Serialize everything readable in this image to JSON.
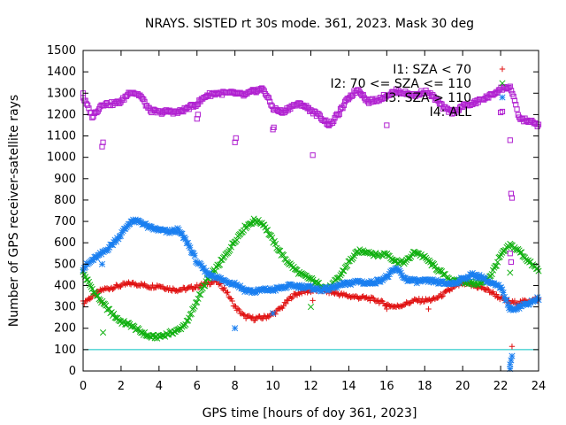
{
  "chart_data": {
    "type": "scatter",
    "title": "NRAYS. SISTED rt 30s mode. 361, 2023. Mask 30 deg",
    "xlabel": "GPS time [hours of doy 361, 2023]",
    "ylabel": "Number of GPS receiver-satellite rays",
    "xlim": [
      0,
      24
    ],
    "ylim": [
      0,
      1500
    ],
    "xticks": [
      "0",
      "2",
      "4",
      "6",
      "8",
      "10",
      "12",
      "14",
      "16",
      "18",
      "20",
      "22",
      "24"
    ],
    "yticks": [
      "0",
      "100",
      "200",
      "300",
      "400",
      "500",
      "600",
      "700",
      "800",
      "900",
      "1000",
      "1100",
      "1200",
      "1300",
      "1400",
      "1500"
    ],
    "reference_line": {
      "y": 100,
      "color": "#00c0c0"
    },
    "series": [
      {
        "name": "I1: SZA < 70",
        "marker": "plus",
        "color": "#e01010",
        "x": [
          0,
          0.5,
          1,
          1.5,
          2,
          2.5,
          3,
          3.5,
          4,
          4.5,
          5,
          5.5,
          6,
          6.5,
          7,
          7.5,
          8,
          8.5,
          9,
          9.5,
          10,
          10.5,
          11,
          11.5,
          12,
          12.5,
          13,
          13.5,
          14,
          14.5,
          15,
          15.5,
          16,
          16.5,
          17,
          17.5,
          18,
          18.5,
          19,
          19.5,
          20,
          20.5,
          21,
          21.5,
          22,
          22.5,
          23,
          23.5,
          24
        ],
        "y": [
          320,
          350,
          380,
          390,
          400,
          410,
          405,
          395,
          400,
          385,
          380,
          385,
          395,
          410,
          420,
          380,
          300,
          255,
          245,
          250,
          265,
          300,
          350,
          370,
          375,
          380,
          370,
          360,
          350,
          345,
          340,
          330,
          310,
          300,
          315,
          330,
          330,
          335,
          360,
          390,
          410,
          400,
          390,
          370,
          340,
          320,
          320,
          330,
          335
        ],
        "outliers": [
          [
            1.0,
            320
          ],
          [
            12.1,
            330
          ],
          [
            16.0,
            290
          ],
          [
            18.2,
            290
          ],
          [
            22.6,
            115
          ]
        ]
      },
      {
        "name": "I2: 70 <= SZA <= 110",
        "marker": "x",
        "color": "#10b010",
        "x": [
          0,
          0.5,
          1,
          1.5,
          2,
          2.5,
          3,
          3.5,
          4,
          4.5,
          5,
          5.5,
          6,
          6.5,
          7,
          7.5,
          8,
          8.5,
          9,
          9.5,
          10,
          10.5,
          11,
          11.5,
          12,
          12.5,
          13,
          13.5,
          14,
          14.5,
          15,
          15.5,
          16,
          16.5,
          17,
          17.5,
          18,
          18.5,
          19,
          19.5,
          20,
          20.5,
          21,
          21.5,
          22,
          22.5,
          23,
          23.5,
          24
        ],
        "y": [
          460,
          380,
          320,
          270,
          230,
          215,
          185,
          160,
          160,
          175,
          190,
          230,
          330,
          420,
          480,
          540,
          610,
          670,
          705,
          690,
          610,
          540,
          490,
          450,
          430,
          400,
          390,
          440,
          510,
          560,
          560,
          540,
          550,
          510,
          510,
          560,
          530,
          490,
          450,
          420,
          420,
          410,
          410,
          450,
          540,
          590,
          560,
          510,
          470
        ],
        "outliers": [
          [
            1.05,
            180
          ],
          [
            12.0,
            300
          ],
          [
            22.5,
            460
          ]
        ]
      },
      {
        "name": "I3: SZA > 110",
        "marker": "star",
        "color": "#1a7ff0",
        "x": [
          0,
          0.5,
          1,
          1.5,
          2,
          2.5,
          3,
          3.5,
          4,
          4.5,
          5,
          5.5,
          6,
          6.5,
          7,
          7.5,
          8,
          8.5,
          9,
          9.5,
          10,
          10.5,
          11,
          11.5,
          12,
          12.5,
          13,
          13.5,
          14,
          14.5,
          15,
          15.5,
          16,
          16.5,
          17,
          17.5,
          18,
          18.5,
          19,
          19.5,
          20,
          20.5,
          21,
          21.5,
          22,
          22.5,
          23,
          23.5,
          24
        ],
        "y": [
          480,
          520,
          550,
          590,
          640,
          700,
          700,
          670,
          660,
          650,
          660,
          600,
          510,
          460,
          440,
          420,
          410,
          380,
          370,
          380,
          380,
          390,
          400,
          395,
          390,
          380,
          385,
          400,
          410,
          420,
          410,
          420,
          440,
          480,
          430,
          420,
          420,
          420,
          410,
          410,
          430,
          450,
          440,
          410,
          390,
          290,
          300,
          320,
          340
        ],
        "outliers": [
          [
            1.0,
            500
          ],
          [
            8.0,
            200
          ],
          [
            10.0,
            270
          ],
          [
            22.5,
            30
          ],
          [
            22.55,
            50
          ],
          [
            22.6,
            70
          ],
          [
            22.5,
            10
          ]
        ]
      },
      {
        "name": "I4: ALL",
        "marker": "square",
        "color": "#b020d0",
        "x": [
          0,
          0.5,
          1,
          1.5,
          2,
          2.5,
          3,
          3.5,
          4,
          4.5,
          5,
          5.5,
          6,
          6.5,
          7,
          7.5,
          8,
          8.5,
          9,
          9.5,
          10,
          10.5,
          11,
          11.5,
          12,
          12.5,
          13,
          13.5,
          14,
          14.5,
          15,
          15.5,
          16,
          16.5,
          17,
          17.5,
          18,
          18.5,
          19,
          19.5,
          20,
          20.5,
          21,
          21.5,
          22,
          22.5,
          23,
          23.5,
          24
        ],
        "y": [
          1280,
          1190,
          1250,
          1250,
          1260,
          1310,
          1290,
          1220,
          1210,
          1215,
          1210,
          1230,
          1250,
          1290,
          1300,
          1300,
          1300,
          1290,
          1310,
          1320,
          1230,
          1210,
          1240,
          1250,
          1220,
          1190,
          1150,
          1210,
          1280,
          1320,
          1260,
          1270,
          1290,
          1310,
          1300,
          1290,
          1310,
          1280,
          1230,
          1210,
          1240,
          1250,
          1270,
          1290,
          1320,
          1330,
          1180,
          1170,
          1150
        ],
        "outliers": [
          [
            0,
            1300
          ],
          [
            1.0,
            1050
          ],
          [
            1.05,
            1070
          ],
          [
            6.0,
            1180
          ],
          [
            6.05,
            1200
          ],
          [
            8.0,
            1070
          ],
          [
            8.05,
            1090
          ],
          [
            10.0,
            1130
          ],
          [
            10.05,
            1140
          ],
          [
            12.1,
            1010
          ],
          [
            16.0,
            1150
          ],
          [
            22.0,
            1210
          ],
          [
            22.5,
            1080
          ],
          [
            22.55,
            830
          ],
          [
            22.6,
            810
          ],
          [
            22.5,
            550
          ],
          [
            22.55,
            510
          ]
        ]
      }
    ],
    "legend_position": "top-right"
  }
}
